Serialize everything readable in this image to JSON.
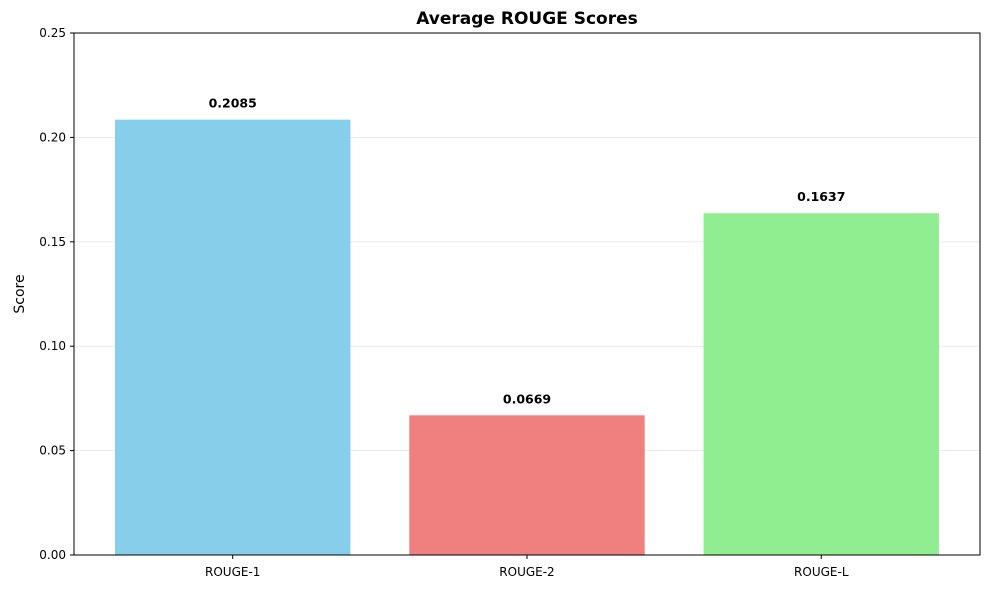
{
  "chart_data": {
    "type": "bar",
    "title": "Average ROUGE Scores",
    "xlabel": "",
    "ylabel": "Score",
    "categories": [
      "ROUGE-1",
      "ROUGE-2",
      "ROUGE-L"
    ],
    "values": [
      0.2085,
      0.0669,
      0.1637
    ],
    "value_labels": [
      "0.2085",
      "0.0669",
      "0.1637"
    ],
    "colors": [
      "#87ceeb",
      "#f08080",
      "#90ee90"
    ],
    "ylim": [
      0,
      0.25
    ],
    "yticks": [
      0,
      0.05,
      0.1,
      0.15,
      0.2,
      0.25
    ],
    "ytick_labels": [
      "0.00",
      "0.05",
      "0.10",
      "0.15",
      "0.20",
      "0.25"
    ],
    "grid": "y",
    "legend": "none"
  }
}
